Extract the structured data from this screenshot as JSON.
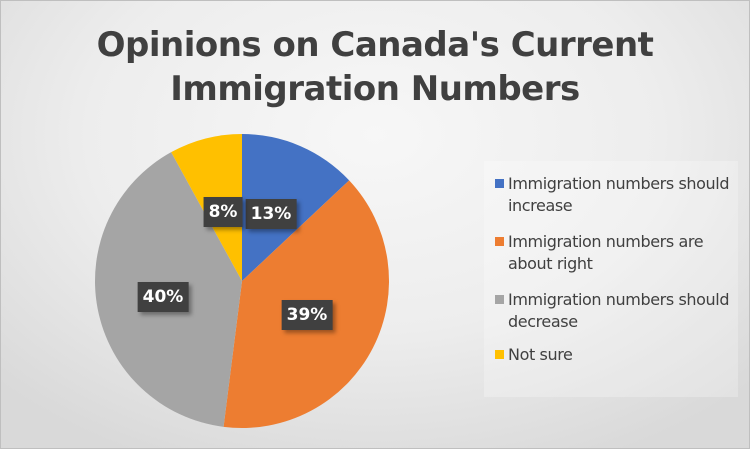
{
  "chart_data": {
    "type": "pie",
    "title": "Opinions on Canada's Current Immigration Numbers",
    "categories": [
      "Immigration numbers should increase",
      "Immigration numbers are about right",
      "Immigration numbers should decrease",
      "Not sure"
    ],
    "values": [
      13,
      39,
      40,
      8
    ],
    "labels": [
      "13%",
      "39%",
      "40%",
      "8%"
    ],
    "colors": [
      "#4472C4",
      "#ED7D31",
      "#A5A5A5",
      "#FFC000"
    ],
    "legend_position": "right",
    "start_angle_deg": 0,
    "direction": "clockwise"
  },
  "title": {
    "line1": "Opinions on Canada's Current",
    "line2": "Immigration Numbers"
  },
  "legend": {
    "items": [
      {
        "label": "Immigration numbers should increase",
        "color": "#4472C4"
      },
      {
        "label": "Immigration numbers are about right",
        "color": "#ED7D31"
      },
      {
        "label": "Immigration numbers should decrease",
        "color": "#A5A5A5"
      },
      {
        "label": "Not sure",
        "color": "#FFC000"
      }
    ]
  },
  "data_labels": {
    "increase": "13%",
    "about_right": "39%",
    "decrease": "40%",
    "not_sure": "8%"
  }
}
